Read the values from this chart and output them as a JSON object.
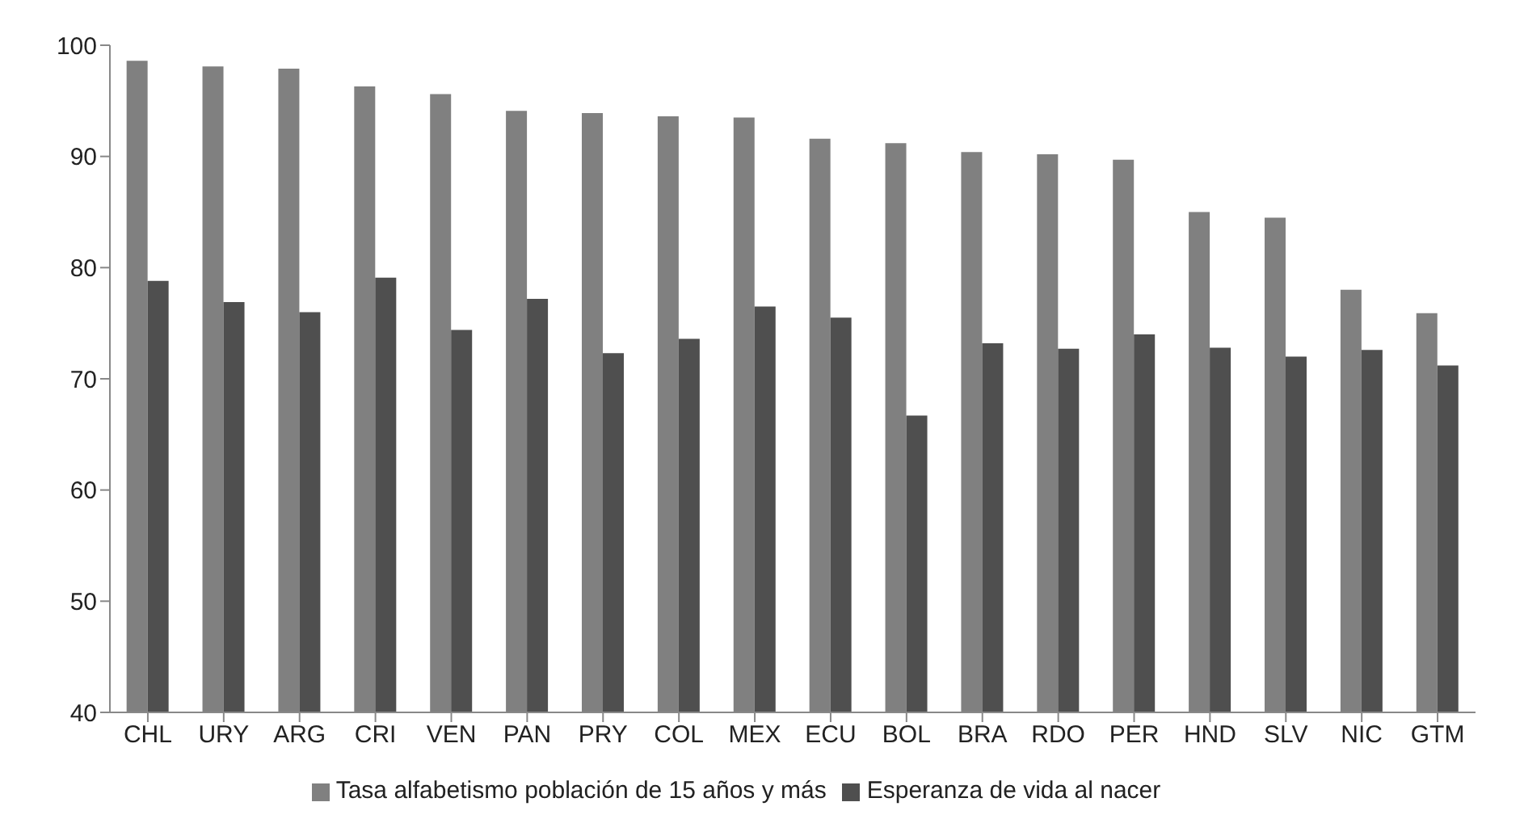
{
  "chart_data": {
    "type": "bar",
    "categories": [
      "CHL",
      "URY",
      "ARG",
      "CRI",
      "VEN",
      "PAN",
      "PRY",
      "COL",
      "MEX",
      "ECU",
      "BOL",
      "BRA",
      "RDO",
      "PER",
      "HND",
      "SLV",
      "NIC",
      "GTM"
    ],
    "series": [
      {
        "name": "Tasa alfabetismo población de 15 años y más",
        "color": "#808080",
        "values": [
          98.6,
          98.1,
          97.9,
          96.3,
          95.6,
          94.1,
          93.9,
          93.6,
          93.5,
          91.6,
          91.2,
          90.4,
          90.2,
          89.7,
          85.0,
          84.5,
          78.0,
          75.9
        ]
      },
      {
        "name": "Esperanza de vida al nacer",
        "color": "#4f4f4f",
        "values": [
          78.8,
          76.9,
          76.0,
          79.1,
          74.4,
          77.2,
          72.3,
          73.6,
          76.5,
          75.5,
          66.7,
          73.2,
          72.7,
          74.0,
          72.8,
          72.0,
          72.6,
          71.2
        ]
      }
    ],
    "ylim": [
      40,
      100
    ],
    "yticks": [
      40,
      50,
      60,
      70,
      80,
      90,
      100
    ],
    "grid": false,
    "legend": "bottom"
  }
}
